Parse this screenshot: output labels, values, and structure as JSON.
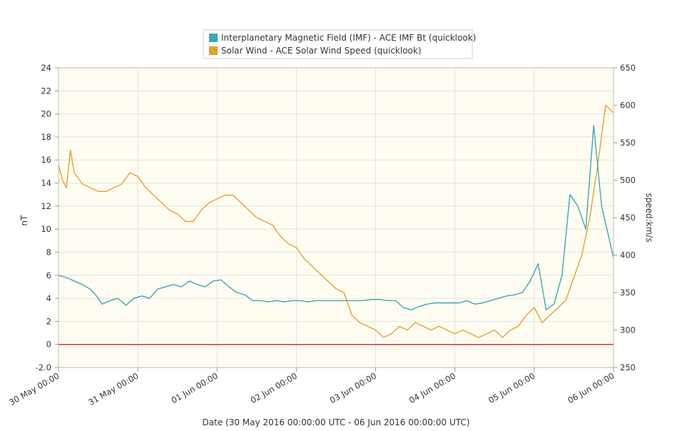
{
  "chart_data": {
    "type": "line",
    "title": "",
    "xlabel": "Date (30 May 2016 00:00:00 UTC - 06 Jun 2016 00:00:00 UTC)",
    "ylabel_left": "nT",
    "ylabel_right": "speed:km/s",
    "x_ticks": [
      "30 May 00:00",
      "31 May 00:00",
      "01 Jun 00:00",
      "02 Jun 00:00",
      "03 Jun 00:00",
      "04 Jun 00:00",
      "05 Jun 00:00",
      "06 Jun 00:00"
    ],
    "y_left": {
      "ticks": [
        "-2.0",
        "0",
        "2",
        "4",
        "6",
        "8",
        "10",
        "12",
        "14",
        "16",
        "18",
        "20",
        "22",
        "24"
      ],
      "range": [
        -2,
        24
      ]
    },
    "y_right": {
      "ticks": [
        "250",
        "300",
        "350",
        "400",
        "450",
        "500",
        "550",
        "600",
        "650"
      ],
      "range": [
        250,
        650
      ]
    },
    "x_range_days": [
      0,
      7
    ],
    "background_color": "#fffdf2",
    "grid": true,
    "legend_position": "top-center",
    "reference_line": {
      "y": 0,
      "axis": "left",
      "color": "#e0302a"
    },
    "series": [
      {
        "name": "Interplanetary Magnetic Field (IMF) - ACE IMF Bt (quicklook)",
        "axis": "left",
        "color": "#3aa7b8",
        "x_days": [
          0.0,
          0.1,
          0.2,
          0.3,
          0.4,
          0.48,
          0.55,
          0.65,
          0.75,
          0.85,
          0.95,
          1.05,
          1.15,
          1.25,
          1.35,
          1.45,
          1.55,
          1.65,
          1.75,
          1.85,
          1.95,
          2.05,
          2.15,
          2.25,
          2.35,
          2.45,
          2.55,
          2.65,
          2.75,
          2.85,
          2.95,
          3.05,
          3.15,
          3.25,
          3.35,
          3.45,
          3.55,
          3.65,
          3.75,
          3.85,
          3.95,
          4.05,
          4.15,
          4.25,
          4.35,
          4.45,
          4.55,
          4.65,
          4.75,
          4.85,
          4.95,
          5.05,
          5.15,
          5.25,
          5.35,
          5.45,
          5.55,
          5.65,
          5.75,
          5.85,
          5.95,
          6.05,
          6.15,
          6.25,
          6.35,
          6.45,
          6.55,
          6.65,
          6.75,
          6.85,
          7.0
        ],
        "values": [
          6.0,
          5.8,
          5.5,
          5.2,
          4.8,
          4.2,
          3.5,
          3.8,
          4.0,
          3.4,
          4.0,
          4.2,
          4.0,
          4.8,
          5.0,
          5.2,
          5.0,
          5.5,
          5.2,
          5.0,
          5.5,
          5.6,
          5.0,
          4.5,
          4.3,
          3.8,
          3.8,
          3.7,
          3.8,
          3.7,
          3.8,
          3.8,
          3.7,
          3.8,
          3.8,
          3.8,
          3.8,
          3.8,
          3.8,
          3.8,
          3.9,
          3.9,
          3.8,
          3.8,
          3.2,
          3.0,
          3.3,
          3.5,
          3.6,
          3.6,
          3.6,
          3.6,
          3.8,
          3.5,
          3.6,
          3.8,
          4.0,
          4.2,
          4.3,
          4.5,
          5.5,
          7.0,
          3.0,
          3.5,
          6.0,
          13.0,
          12.0,
          10.0,
          19.0,
          12.0,
          7.5
        ]
      },
      {
        "name": "Solar Wind - ACE Solar Wind Speed (quicklook)",
        "axis": "right",
        "color": "#e8a128",
        "x_days": [
          0.0,
          0.05,
          0.1,
          0.15,
          0.2,
          0.3,
          0.4,
          0.5,
          0.6,
          0.7,
          0.8,
          0.9,
          1.0,
          1.1,
          1.2,
          1.3,
          1.4,
          1.5,
          1.6,
          1.7,
          1.8,
          1.9,
          2.0,
          2.1,
          2.2,
          2.3,
          2.4,
          2.5,
          2.6,
          2.7,
          2.8,
          2.9,
          3.0,
          3.1,
          3.2,
          3.3,
          3.4,
          3.5,
          3.6,
          3.7,
          3.8,
          3.9,
          4.0,
          4.1,
          4.2,
          4.3,
          4.4,
          4.5,
          4.6,
          4.7,
          4.8,
          4.9,
          5.0,
          5.1,
          5.2,
          5.3,
          5.4,
          5.5,
          5.6,
          5.7,
          5.8,
          5.9,
          6.0,
          6.1,
          6.2,
          6.3,
          6.4,
          6.5,
          6.6,
          6.7,
          6.8,
          6.9,
          7.0
        ],
        "values": [
          520,
          500,
          490,
          540,
          510,
          495,
          490,
          485,
          485,
          490,
          495,
          510,
          505,
          490,
          480,
          470,
          460,
          455,
          445,
          445,
          460,
          470,
          475,
          480,
          480,
          470,
          460,
          450,
          445,
          440,
          425,
          415,
          410,
          395,
          385,
          375,
          365,
          355,
          350,
          320,
          310,
          305,
          300,
          290,
          295,
          305,
          300,
          310,
          305,
          300,
          305,
          300,
          295,
          300,
          295,
          290,
          295,
          300,
          290,
          300,
          305,
          320,
          330,
          310,
          320,
          330,
          340,
          370,
          400,
          450,
          520,
          600,
          590
        ]
      }
    ]
  }
}
